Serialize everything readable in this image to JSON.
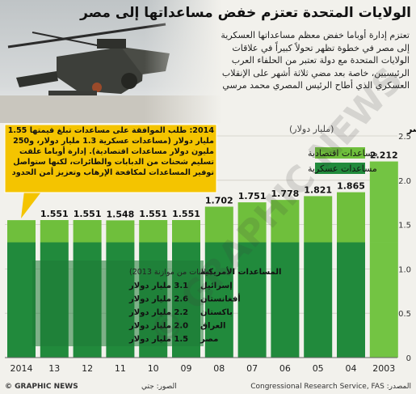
{
  "title": "الولايات المتحدة تعتزم خفض مساعداتها إلى مصر",
  "intro": "تعتزم إدارة أوباما خفض معظم مساعداتها العسكرية إلى مصر في خطوة تظهر تحولاً كبيراً في علاقات الولايات المتحدة مع دولة تعتبر من الحلفاء العرب الرئيسيين، خاصة بعد مضي ثلاثة أشهر على الإنقلاب العسكري الذي أطاح الرئيس المصري محمد مرسي",
  "colors": {
    "economic": "#6fbf3c",
    "military": "#218a3c",
    "military_light": "#2e9a45",
    "callout": "#f4c400",
    "bar_2003": "#73c443"
  },
  "chart_data": {
    "type": "bar",
    "stacked": true,
    "title": "المساعدات الأمريكية إلى مصر",
    "unit": "(مليار دولار)",
    "categories": [
      "2014",
      "13",
      "12",
      "11",
      "10",
      "09",
      "08",
      "07",
      "06",
      "05",
      "04",
      "2003"
    ],
    "totals": [
      1.55,
      1.551,
      1.551,
      1.548,
      1.551,
      1.551,
      1.702,
      1.751,
      1.778,
      1.821,
      1.865,
      2.212
    ],
    "total_labels": [
      "",
      "1.551",
      "1.551",
      "1.548",
      "1.551",
      "1.551",
      "1.702",
      "1.751",
      "1.778",
      "1.821",
      "1.865",
      "2.212"
    ],
    "series": [
      {
        "name": "مساعدات عسكرية",
        "values": [
          1.3,
          1.3,
          1.3,
          1.3,
          1.3,
          1.3,
          1.3,
          1.3,
          1.3,
          1.3,
          1.3,
          1.3
        ]
      },
      {
        "name": "مساعدات اقتصادية",
        "values": [
          0.25,
          0.251,
          0.251,
          0.248,
          0.251,
          0.251,
          0.402,
          0.451,
          0.478,
          0.521,
          0.565,
          0.912
        ]
      }
    ],
    "y_ticks": [
      "0",
      "0.5",
      "1.0",
      "1.5",
      "2.0",
      "2.5"
    ],
    "ylim": [
      0,
      2.5
    ],
    "legend_position": "top-right"
  },
  "callout": {
    "text": "2014: طلب الموافقة على مساعدات تبلغ قيمتها 1.55 مليار دولار (مساعدات عسكرية 1.3 مليار دولار، و250 مليون دولار مساعدات اقتصادية). إدارة أوباما علقت تسليم شحنات من الدبابات والطائرات، لكنها ستواصل توفير المساعدات لمكافحة الإرهاب وتعزيز أمن الحدود"
  },
  "inset_table": {
    "header_left": "(طلبات من موازنة 2013)",
    "header_right": "المساعدات الأمريكية",
    "rows": [
      {
        "country": "إسرائيل",
        "value": "3.1 مليار دولار"
      },
      {
        "country": "أفغانستان",
        "value": "2.6 مليار دولار"
      },
      {
        "country": "باكستان",
        "value": "2.2 مليار دولار"
      },
      {
        "country": "العراق",
        "value": "2.0 مليار دولار"
      },
      {
        "country": "مصر",
        "value": "1.5 مليار دولار"
      }
    ]
  },
  "footer": {
    "logo": "© GRAPHIC NEWS",
    "photo_credit": "الصور: جتي",
    "source": "المصدر: Congressional Research Service, FAS"
  },
  "watermark": "© GRAPHIC NEWS"
}
